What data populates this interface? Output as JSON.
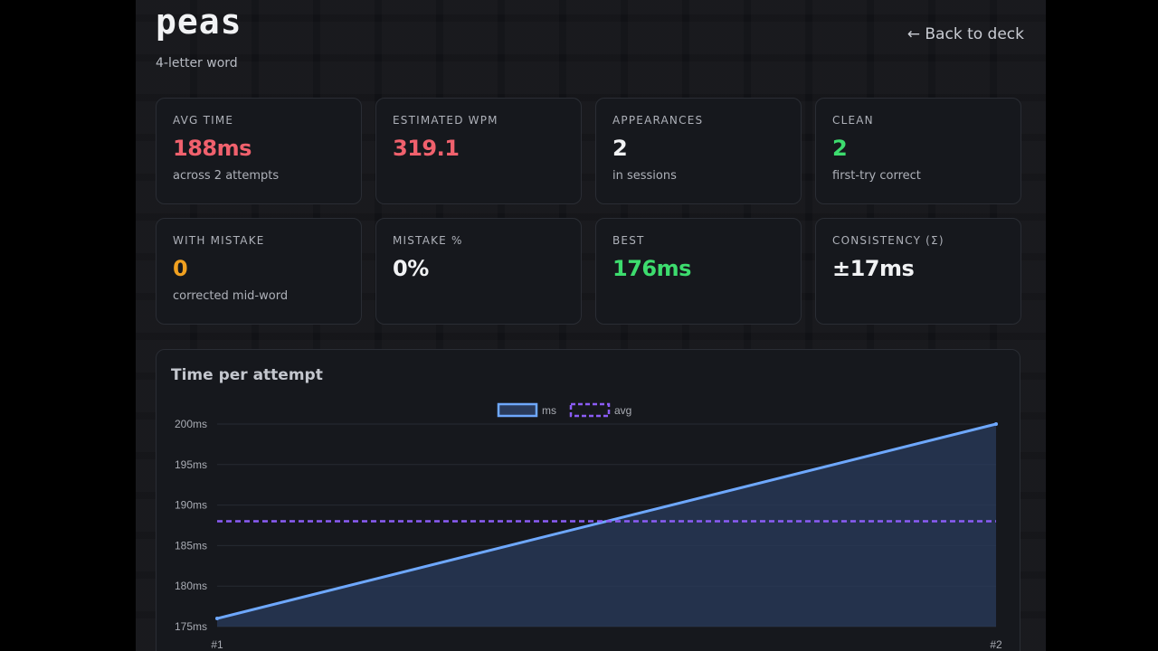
{
  "header": {
    "word": "peas",
    "subtitle": "4-letter word",
    "back_label": "← Back to deck"
  },
  "stats": [
    {
      "label": "AVG TIME",
      "value": "188ms",
      "note": "across 2 attempts",
      "color": "#f0616d"
    },
    {
      "label": "ESTIMATED WPM",
      "value": "319.1",
      "note": "",
      "color": "#f0616d"
    },
    {
      "label": "APPEARANCES",
      "value": "2",
      "note": "in sessions",
      "color": "#f1f2f4"
    },
    {
      "label": "CLEAN",
      "value": "2",
      "note": "first-try correct",
      "color": "#3ddc6e"
    },
    {
      "label": "WITH MISTAKE",
      "value": "0",
      "note": "corrected mid-word",
      "color": "#f0a020"
    },
    {
      "label": "MISTAKE %",
      "value": "0%",
      "note": "",
      "color": "#f1f2f4"
    },
    {
      "label": "BEST",
      "value": "176ms",
      "note": "",
      "color": "#3ddc6e"
    },
    {
      "label": "CONSISTENCY (σ)",
      "value": "±17ms",
      "note": "",
      "color": "#f1f2f4"
    }
  ],
  "chart": {
    "title": "Time per attempt"
  },
  "chart_data": {
    "type": "line",
    "categories": [
      "#1",
      "#2"
    ],
    "series": [
      {
        "name": "ms",
        "values": [
          176,
          200
        ],
        "color": "#6ea8fe",
        "fill": "#2a3b5c"
      },
      {
        "name": "avg",
        "values": [
          188,
          188
        ],
        "color": "#8b5cf6",
        "dashed": true
      }
    ],
    "ylim": [
      175,
      200
    ],
    "yticks": [
      200,
      195,
      190,
      185,
      180,
      175
    ],
    "ytick_labels": [
      "200ms",
      "195ms",
      "190ms",
      "185ms",
      "180ms",
      "175ms"
    ],
    "legend_position": "top-center",
    "grid": true
  }
}
